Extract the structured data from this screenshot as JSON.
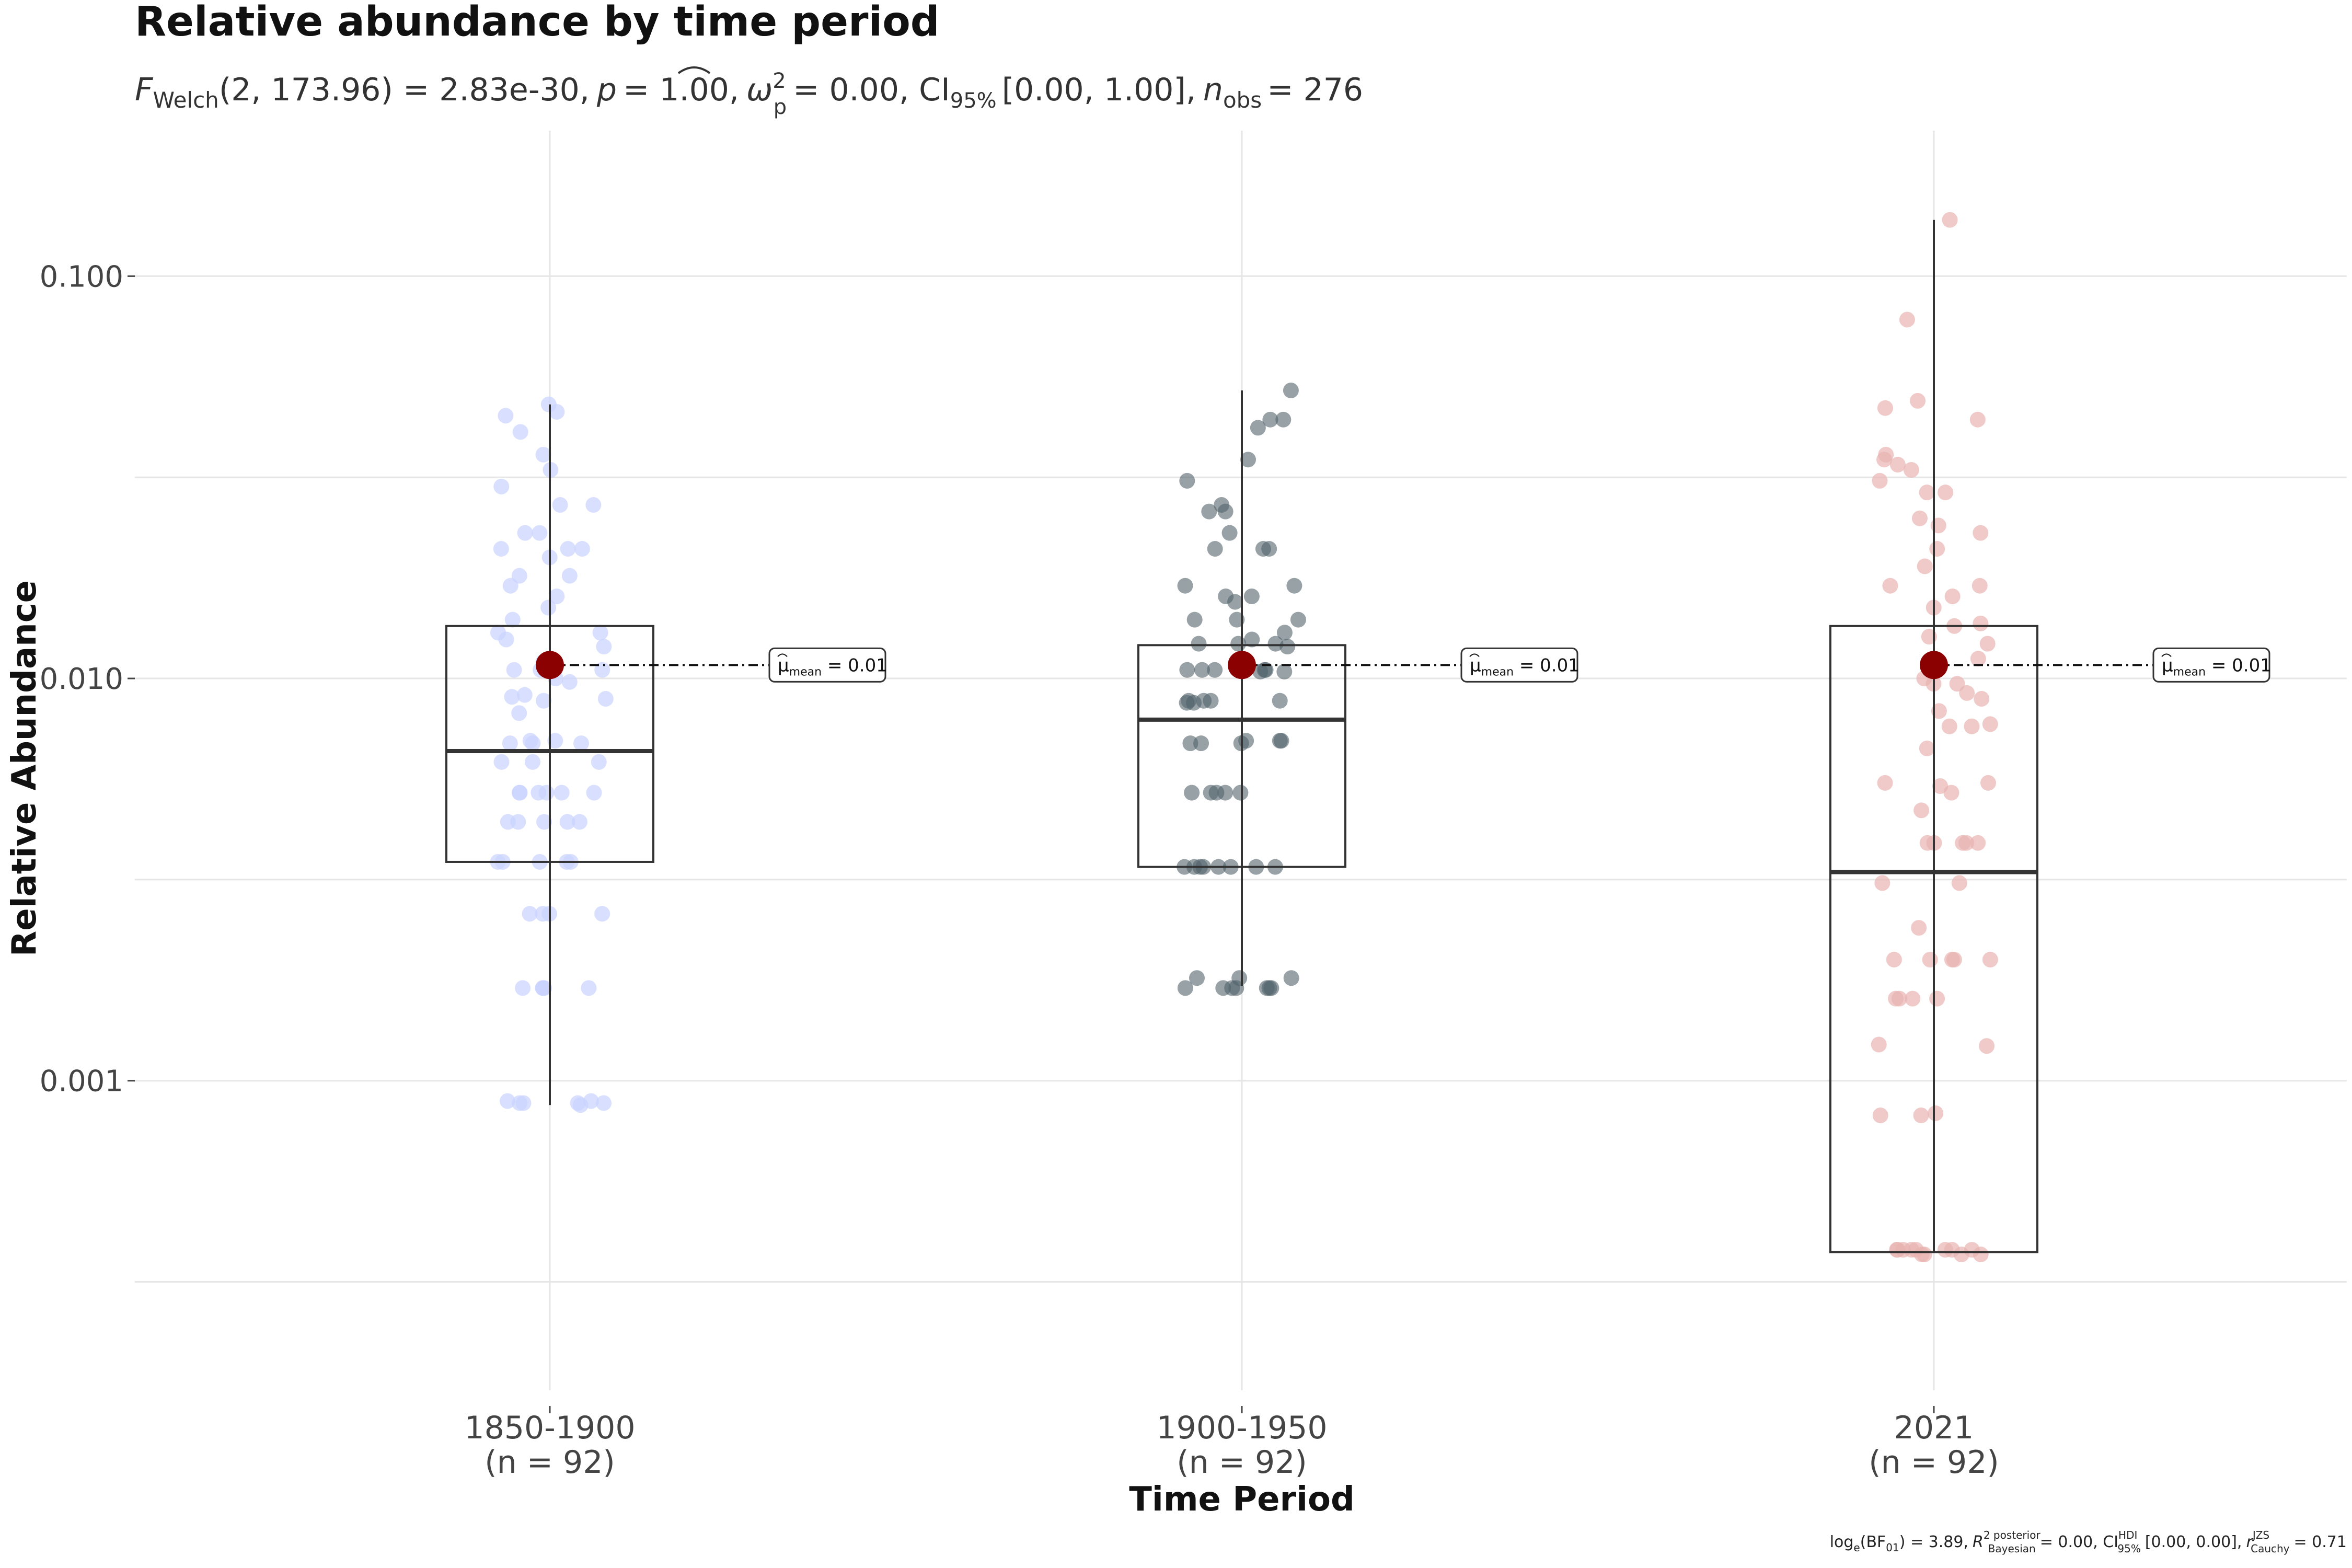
{
  "chart_data": {
    "type": "box",
    "title": "Relative abundance by time period",
    "subtitle": {
      "F_sym": "F",
      "F_sub": "Welch",
      "F_args": "(2, 173.96) = 2.83e-30,",
      "p_sym": "p",
      "p_val": "= 1.00,",
      "omega_sym": "ω",
      "omega_sup": "2",
      "omega_sub": "p",
      "omega_val": "= 0.00, CI",
      "ci_sub": "95%",
      "ci_val": "[0.00, 1.00],",
      "n_sym": "n",
      "n_sub": "obs",
      "n_val": "= 276"
    },
    "xlabel": "Time Period",
    "ylabel": "Relative Abundance",
    "yscale": "log10",
    "ylim": [
      0.00017,
      0.23
    ],
    "yticks": [
      {
        "value": 0.1,
        "label": "0.100"
      },
      {
        "value": 0.01,
        "label": "0.010"
      },
      {
        "value": 0.001,
        "label": "0.001"
      }
    ],
    "minor_gridlines": [
      0.031623,
      0.0031623,
      0.00031623
    ],
    "grid": true,
    "categories": [
      {
        "name": "1850-1900",
        "n_label": "(n = 92)",
        "color": "#c9d3ff",
        "whisker_low": 0.00087,
        "q1": 0.0035,
        "median": 0.0066,
        "q3": 0.0135,
        "whisker_high": 0.048,
        "mean": 0.0108,
        "mean_label_text": "= 0.01"
      },
      {
        "name": "1900-1950",
        "n_label": "(n = 92)",
        "color": "#51636a",
        "whisker_low": 0.00172,
        "q1": 0.0034,
        "median": 0.0079,
        "q3": 0.0121,
        "whisker_high": 0.052,
        "mean": 0.0108,
        "mean_label_text": "= 0.01"
      },
      {
        "name": "2021",
        "n_label": "(n = 92)",
        "color": "#e8b4b0",
        "whisker_low": 0.000375,
        "q1": 0.000375,
        "median": 0.0033,
        "q3": 0.0135,
        "whisker_high": 0.138,
        "mean": 0.0108,
        "mean_label_text": "= 0.01"
      }
    ],
    "points": [
      {
        "group": 0,
        "values": [
          0.048,
          0.046,
          0.045,
          0.041,
          0.036,
          0.033,
          0.03,
          0.027,
          0.027,
          0.023,
          0.023,
          0.021,
          0.021,
          0.021,
          0.02,
          0.018,
          0.018,
          0.017,
          0.016,
          0.015,
          0.014,
          0.013,
          0.013,
          0.012,
          0.0125,
          0.011,
          0.0105,
          0.0105,
          0.0105,
          0.01,
          0.0098,
          0.0091,
          0.009,
          0.0089,
          0.0088,
          0.0082,
          0.007,
          0.007,
          0.0069,
          0.0069,
          0.0069,
          0.0062,
          0.0062,
          0.0062,
          0.0052,
          0.0052,
          0.0052,
          0.0052,
          0.0052,
          0.0052,
          0.0044,
          0.0044,
          0.0044,
          0.0044,
          0.0044,
          0.0035,
          0.0035,
          0.0035,
          0.0035,
          0.0035,
          0.0026,
          0.0026,
          0.0026,
          0.0026,
          0.0017,
          0.0017,
          0.0017,
          0.0017,
          0.0017,
          0.00088,
          0.00088,
          0.00089,
          0.00088,
          0.00087,
          0.00089,
          0.00088
        ]
      },
      {
        "group": 1,
        "values": [
          0.052,
          0.044,
          0.044,
          0.042,
          0.035,
          0.031,
          0.027,
          0.026,
          0.026,
          0.023,
          0.021,
          0.021,
          0.021,
          0.017,
          0.017,
          0.016,
          0.016,
          0.0155,
          0.014,
          0.014,
          0.014,
          0.013,
          0.0125,
          0.0122,
          0.0122,
          0.0122,
          0.012,
          0.0105,
          0.0105,
          0.0105,
          0.0105,
          0.0105,
          0.0104,
          0.0104,
          0.0088,
          0.0088,
          0.0088,
          0.0088,
          0.0087,
          0.0087,
          0.007,
          0.007,
          0.007,
          0.0069,
          0.0069,
          0.0069,
          0.0052,
          0.0052,
          0.0052,
          0.0052,
          0.0052,
          0.0034,
          0.0034,
          0.0034,
          0.0034,
          0.0034,
          0.0034,
          0.0034,
          0.0034,
          0.0018,
          0.0018,
          0.0017,
          0.0017,
          0.0017,
          0.0017,
          0.0017,
          0.0017,
          0.0018,
          0.0017
        ]
      },
      {
        "group": 2,
        "values": [
          0.138,
          0.078,
          0.049,
          0.047,
          0.044,
          0.036,
          0.035,
          0.034,
          0.033,
          0.031,
          0.029,
          0.029,
          0.025,
          0.024,
          0.023,
          0.021,
          0.019,
          0.017,
          0.017,
          0.016,
          0.015,
          0.0137,
          0.0135,
          0.0127,
          0.0122,
          0.0112,
          0.01,
          0.0097,
          0.0097,
          0.0092,
          0.0089,
          0.0083,
          0.0077,
          0.0076,
          0.0076,
          0.0067,
          0.0055,
          0.0055,
          0.0054,
          0.0052,
          0.0047,
          0.0039,
          0.0039,
          0.0039,
          0.0039,
          0.0039,
          0.0031,
          0.0031,
          0.0024,
          0.002,
          0.002,
          0.002,
          0.002,
          0.002,
          0.0016,
          0.0016,
          0.0016,
          0.0016,
          0.00123,
          0.00122,
          0.00083,
          0.00082,
          0.00082,
          0.00038,
          0.00038,
          0.00038,
          0.00037,
          0.00038,
          0.00037,
          0.00038,
          0.00037,
          0.00038,
          0.00038,
          0.00038,
          0.00037
        ]
      }
    ],
    "mean_color": "#8b0000",
    "footer": {
      "bf_prefix": "log",
      "bf_e": "e",
      "bf_val": "(BF",
      "bf_sub": "01",
      "bf_rest": ") = 3.89,",
      "r2_sym": "R",
      "r2_sup": "2 posterior",
      "r2_sub": "Bayesian",
      "r2_val": "= 0.00, CI",
      "ci_sup": "HDI",
      "ci_sub": "95%",
      "ci_val": "[0.00, 0.00],",
      "r_sym": "r",
      "r_sup": "JZS",
      "r_sub": "Cauchy",
      "r_val": "= 0.71"
    }
  }
}
